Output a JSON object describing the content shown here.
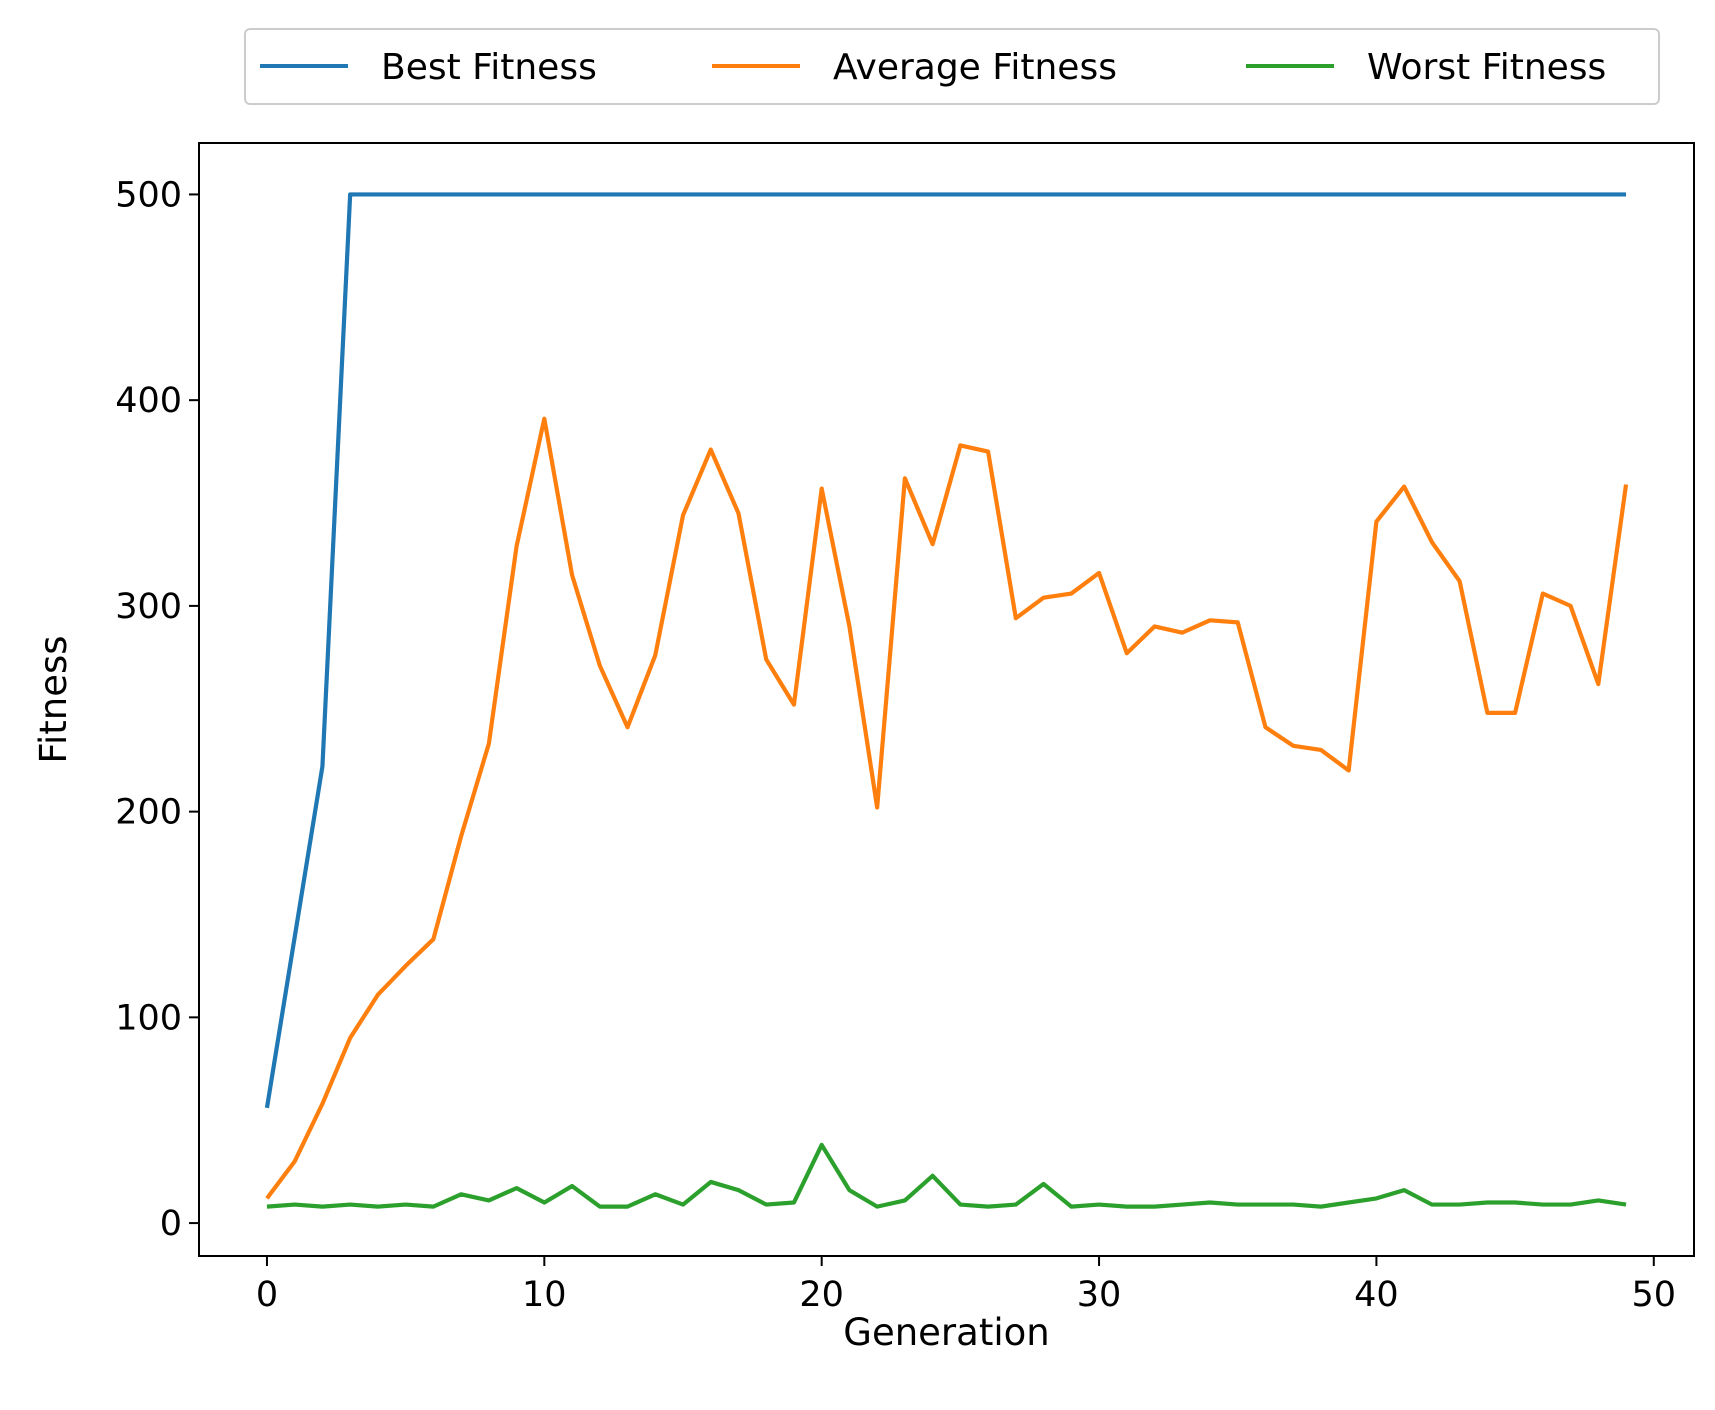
{
  "chart_data": {
    "type": "line",
    "xlabel": "Generation",
    "ylabel": "Fitness",
    "xlim": [
      -2.45,
      51.45
    ],
    "ylim": [
      -16,
      525
    ],
    "xticks": [
      0,
      10,
      20,
      30,
      40,
      50
    ],
    "yticks": [
      0,
      100,
      200,
      300,
      400,
      500
    ],
    "grid": false,
    "legend": {
      "placement": "top-center-outside",
      "columns": 3
    },
    "x": [
      0,
      1,
      2,
      3,
      4,
      5,
      6,
      7,
      8,
      9,
      10,
      11,
      12,
      13,
      14,
      15,
      16,
      17,
      18,
      19,
      20,
      21,
      22,
      23,
      24,
      25,
      26,
      27,
      28,
      29,
      30,
      31,
      32,
      33,
      34,
      35,
      36,
      37,
      38,
      39,
      40,
      41,
      42,
      43,
      44,
      45,
      46,
      47,
      48,
      49
    ],
    "series": [
      {
        "name": "Best Fitness",
        "color": "#1f77b4",
        "values": [
          56,
          139,
          222,
          500,
          500,
          500,
          500,
          500,
          500,
          500,
          500,
          500,
          500,
          500,
          500,
          500,
          500,
          500,
          500,
          500,
          500,
          500,
          500,
          500,
          500,
          500,
          500,
          500,
          500,
          500,
          500,
          500,
          500,
          500,
          500,
          500,
          500,
          500,
          500,
          500,
          500,
          500,
          500,
          500,
          500,
          500,
          500,
          500,
          500,
          500
        ]
      },
      {
        "name": "Average Fitness",
        "color": "#ff7f0e",
        "values": [
          12,
          30,
          58,
          90,
          111,
          125,
          138,
          188,
          233,
          329,
          391,
          315,
          271,
          241,
          276,
          344,
          376,
          345,
          274,
          252,
          357,
          290,
          202,
          362,
          330,
          378,
          375,
          294,
          304,
          306,
          316,
          277,
          290,
          287,
          293,
          292,
          241,
          232,
          230,
          220,
          341,
          358,
          331,
          312,
          248,
          248,
          306,
          300,
          262,
          359
        ]
      },
      {
        "name": "Worst Fitness",
        "color": "#2ca02c",
        "values": [
          8,
          9,
          8,
          9,
          8,
          9,
          8,
          14,
          11,
          17,
          10,
          18,
          8,
          8,
          14,
          9,
          20,
          16,
          9,
          10,
          38,
          16,
          8,
          11,
          23,
          9,
          8,
          9,
          19,
          8,
          9,
          8,
          8,
          9,
          10,
          9,
          9,
          9,
          8,
          10,
          12,
          16,
          9,
          9,
          10,
          10,
          9,
          9,
          11,
          9
        ]
      }
    ]
  }
}
